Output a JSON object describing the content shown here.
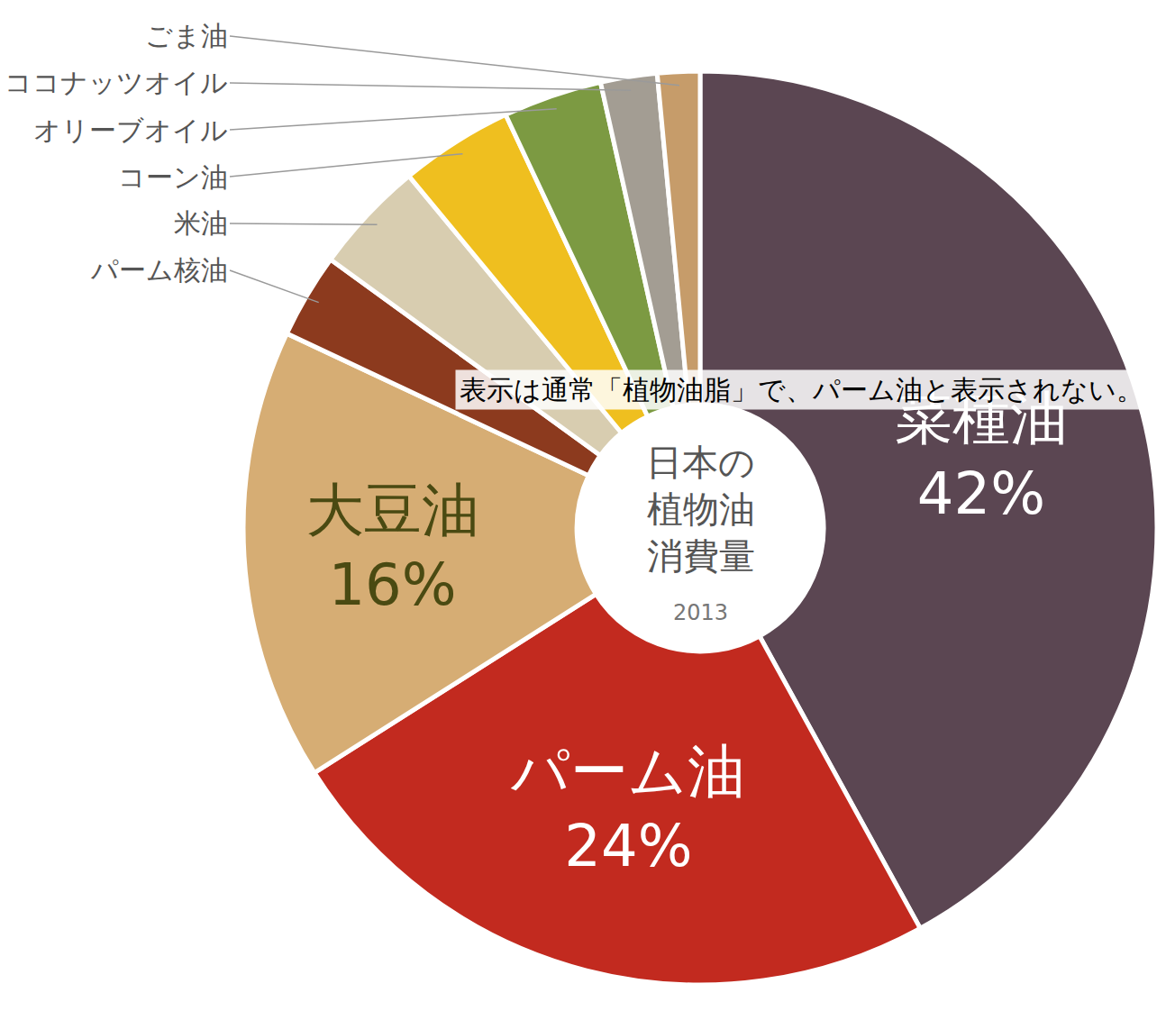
{
  "chart_data": {
    "type": "pie",
    "title": "日本の植物油消費量",
    "subtitle": "2013",
    "categories": [
      "菜種油",
      "パーム油",
      "大豆油",
      "パーム核油",
      "米油",
      "コーン油",
      "オリーブオイル",
      "ココナッツオイル",
      "ごま油"
    ],
    "values": [
      42,
      24,
      16,
      3,
      4,
      4,
      3.5,
      2,
      1.5
    ],
    "value_labels": [
      "42%",
      "24%",
      "16%",
      null,
      null,
      null,
      null,
      null,
      null
    ],
    "colors": [
      "#5b4652",
      "#c22a1f",
      "#d6ad74",
      "#8c3a1e",
      "#d8cdb0",
      "#efbf1f",
      "#7c9a42",
      "#a39d93",
      "#c69c6a"
    ],
    "data_labels": true,
    "annotations": [
      {
        "text": "表示は通常「植物油脂」で、パーム油と表示されない。"
      }
    ]
  }
}
